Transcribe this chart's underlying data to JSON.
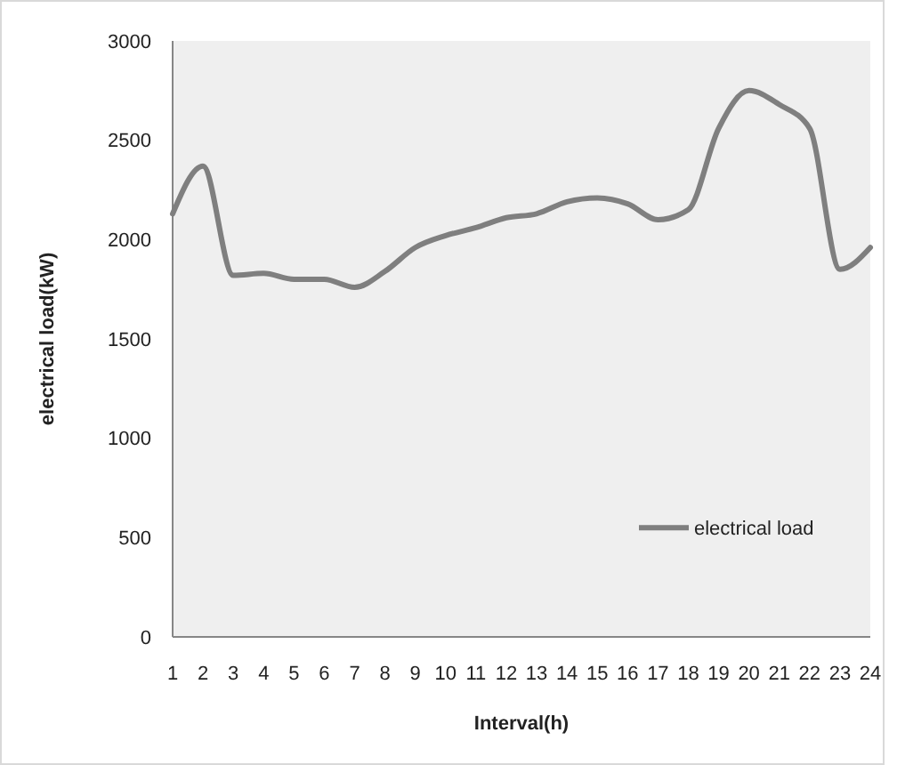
{
  "chart_data": {
    "type": "line",
    "xlabel": "Interval(h)",
    "ylabel": "electrical load(kW)",
    "x": [
      1,
      2,
      3,
      4,
      5,
      6,
      7,
      8,
      9,
      10,
      11,
      12,
      13,
      14,
      15,
      16,
      17,
      18,
      19,
      20,
      21,
      22,
      23,
      24
    ],
    "series": [
      {
        "name": "electrical load",
        "color": "#7f7f7f",
        "values": [
          2130,
          2370,
          1820,
          1830,
          1800,
          1800,
          1760,
          1840,
          1960,
          2020,
          2060,
          2110,
          2130,
          2190,
          2210,
          2180,
          2100,
          2150,
          2560,
          2750,
          2680,
          2560,
          1850,
          1960
        ]
      }
    ],
    "xlim": [
      1,
      24
    ],
    "xticks": [
      1,
      2,
      3,
      4,
      5,
      6,
      7,
      8,
      9,
      10,
      11,
      12,
      13,
      14,
      15,
      16,
      17,
      18,
      19,
      20,
      21,
      22,
      23,
      24
    ],
    "ylim": [
      0,
      3000
    ],
    "yticks": [
      0,
      500,
      1000,
      1500,
      2000,
      2500,
      3000
    ],
    "grid": false,
    "legend": "right",
    "marker": "none",
    "line_style": "solid"
  }
}
